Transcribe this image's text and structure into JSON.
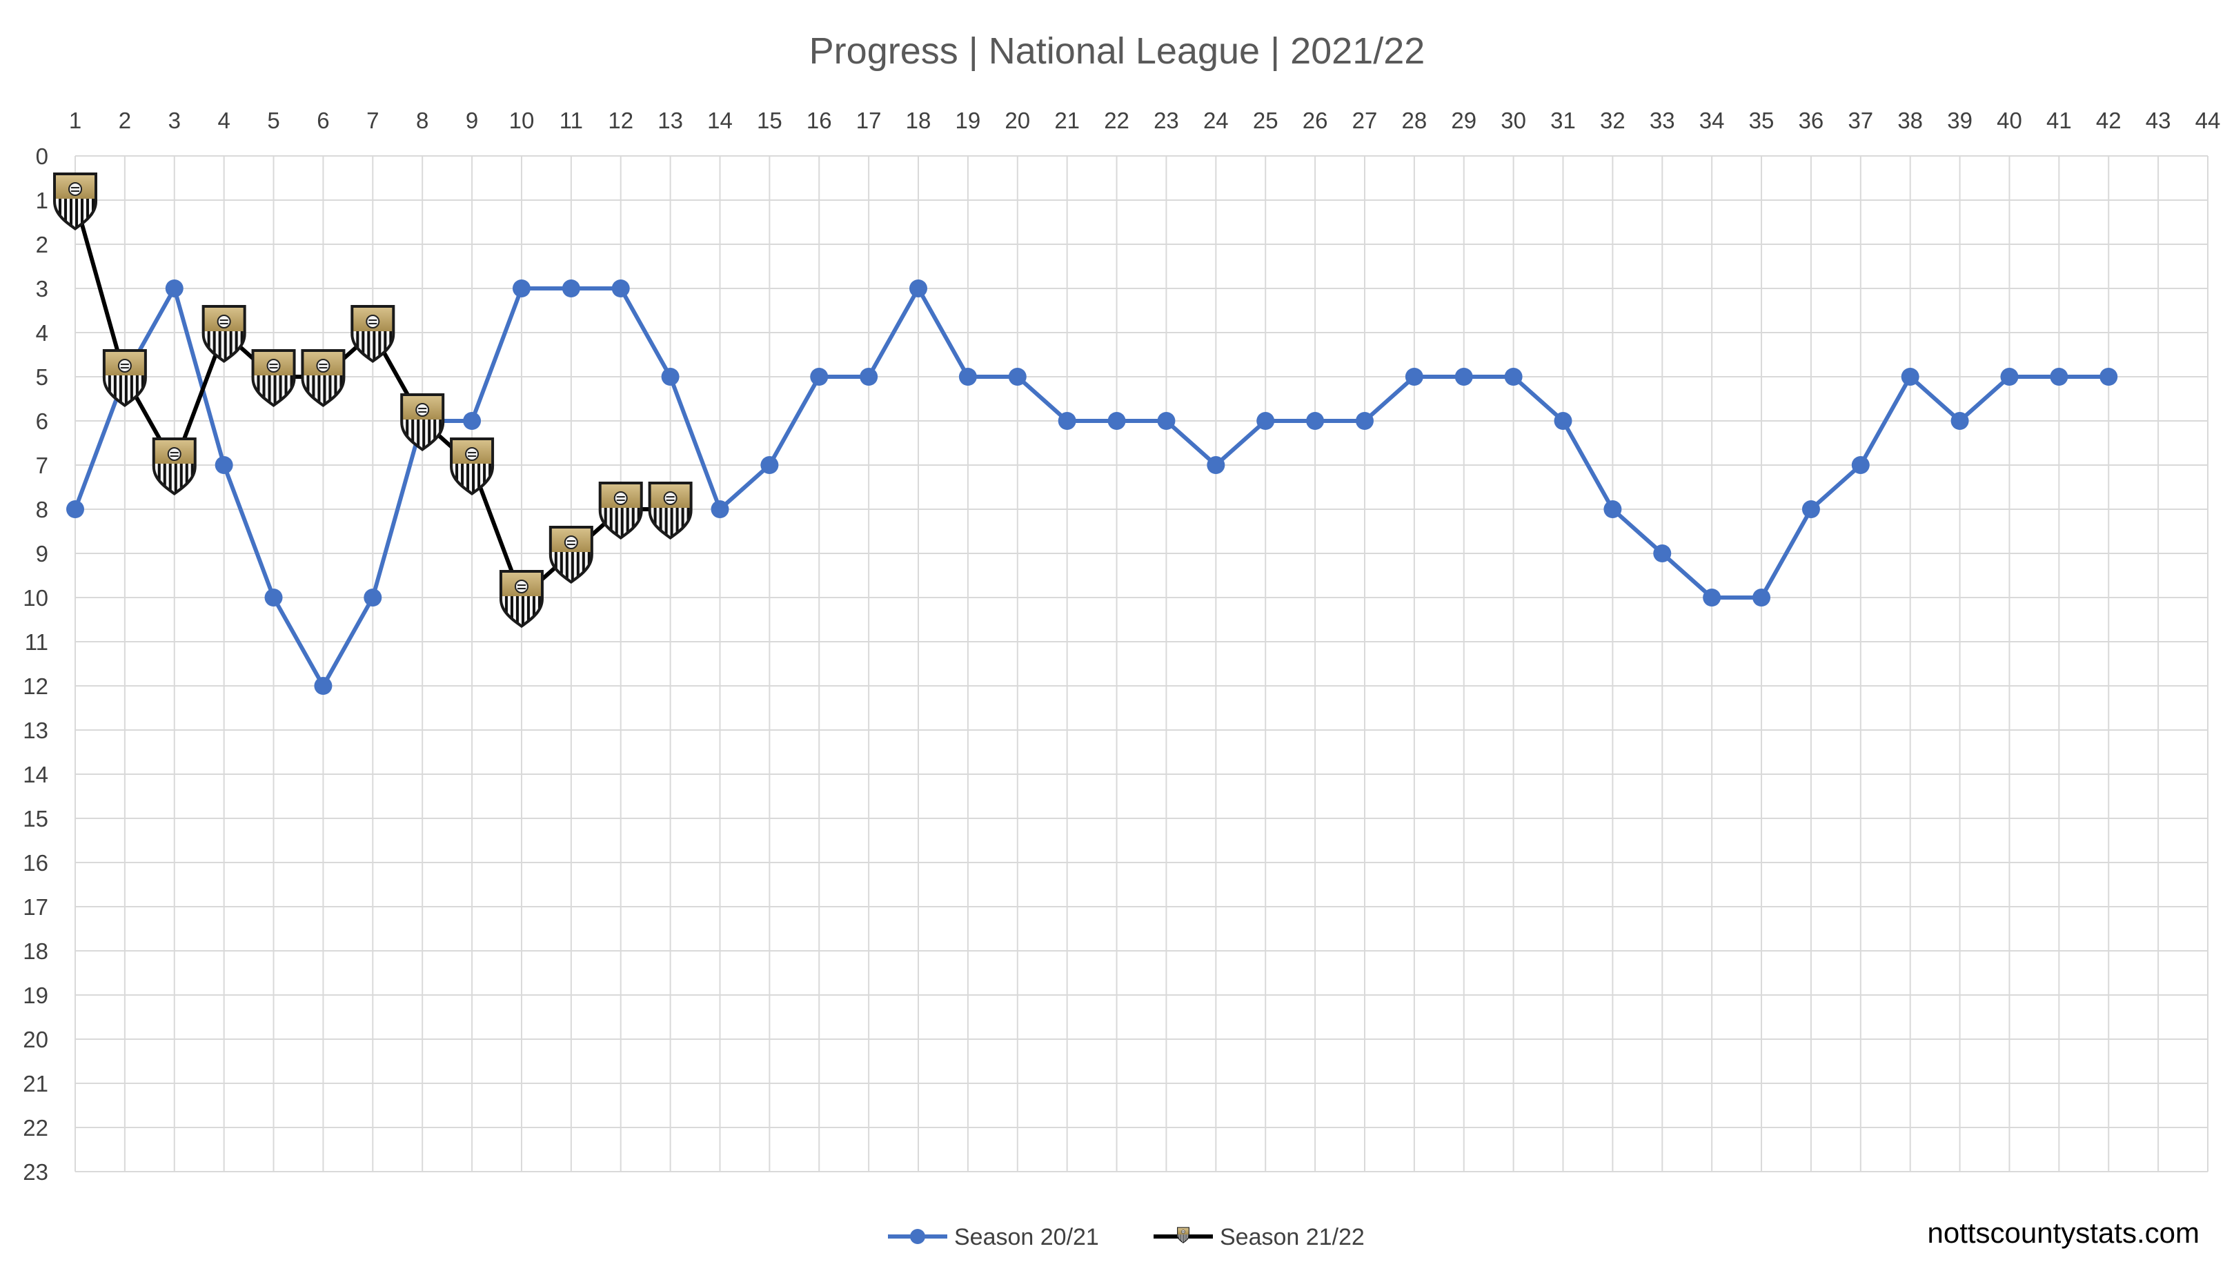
{
  "chart_data": {
    "type": "line",
    "title": "Progress | National League | 2021/22",
    "x_ticks": [
      1,
      2,
      3,
      4,
      5,
      6,
      7,
      8,
      9,
      10,
      11,
      12,
      13,
      14,
      15,
      16,
      17,
      18,
      19,
      20,
      21,
      22,
      23,
      24,
      25,
      26,
      27,
      28,
      29,
      30,
      31,
      32,
      33,
      34,
      35,
      36,
      37,
      38,
      39,
      40,
      41,
      42,
      43,
      44
    ],
    "y_ticks": [
      0,
      1,
      2,
      3,
      4,
      5,
      6,
      7,
      8,
      9,
      10,
      11,
      12,
      13,
      14,
      15,
      16,
      17,
      18,
      19,
      20,
      21,
      22,
      23
    ],
    "xlim": [
      1,
      44
    ],
    "ylim": [
      0,
      23
    ],
    "y_inverted": true,
    "grid": true,
    "legend_position": "bottom-center",
    "series": [
      {
        "name": "Season 20/21",
        "color": "#4472C4",
        "marker": "circle",
        "x": [
          1,
          2,
          3,
          4,
          5,
          6,
          7,
          8,
          9,
          10,
          11,
          12,
          13,
          14,
          15,
          16,
          17,
          18,
          19,
          20,
          21,
          22,
          23,
          24,
          25,
          26,
          27,
          28,
          29,
          30,
          31,
          32,
          33,
          34,
          35,
          36,
          37,
          38,
          39,
          40,
          41,
          42
        ],
        "values": [
          8,
          5,
          3,
          7,
          10,
          12,
          10,
          6,
          6,
          3,
          3,
          3,
          5,
          8,
          7,
          5,
          5,
          3,
          5,
          5,
          6,
          6,
          6,
          7,
          6,
          6,
          6,
          5,
          5,
          5,
          6,
          8,
          9,
          10,
          10,
          8,
          7,
          5,
          6,
          5,
          5,
          5
        ]
      },
      {
        "name": "Season 21/22",
        "color": "#000000",
        "marker": "crest-icon",
        "x": [
          1,
          2,
          3,
          4,
          5,
          6,
          7,
          8,
          9,
          10,
          11,
          12,
          13
        ],
        "values": [
          1,
          5,
          7,
          4,
          5,
          5,
          4,
          6,
          7,
          10,
          9,
          8,
          8
        ]
      }
    ]
  },
  "watermark": "nottscountystats.com"
}
